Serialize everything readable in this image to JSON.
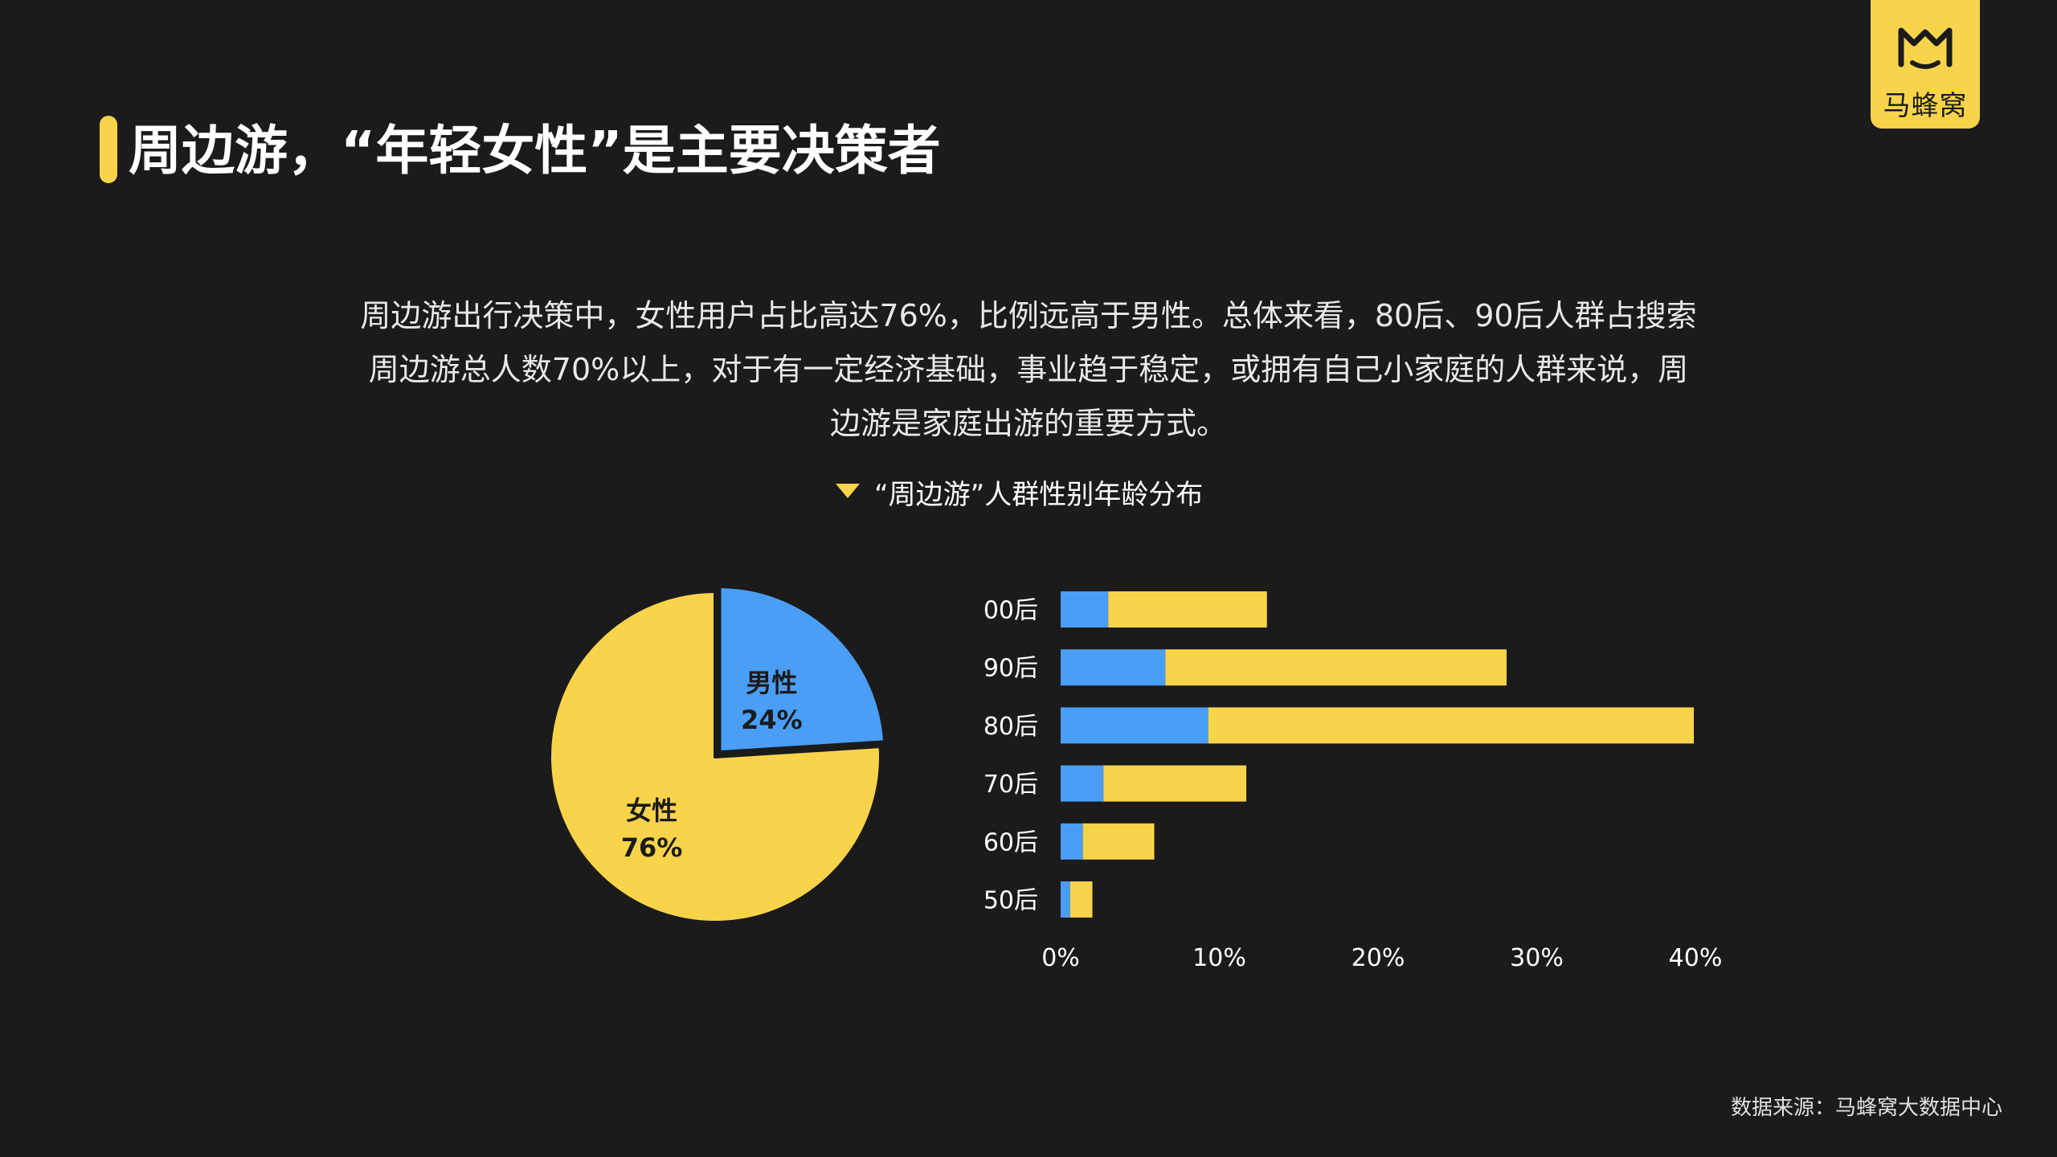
{
  "logo": {
    "text": "马蜂窝",
    "icon": "m-logo-icon"
  },
  "title": "周边游，“年轻女性”是主要决策者",
  "description": "周边游出行决策中，女性用户占比高达76%，比例远高于男性。总体来看，80后、90后人群占搜索周边游总人数70%以上，对于有一定经济基础，事业趋于稳定，或拥有自己小家庭的人群来说，周边游是家庭出游的重要方式。",
  "chart_title": "“周边游”人群性别年龄分布",
  "source": "数据来源：马蜂窝大数据中心",
  "colors": {
    "male": "#4a9ef5",
    "female": "#f9d44b",
    "background": "#1b1b1b",
    "accent": "#f9d44b"
  },
  "chart_data": [
    {
      "type": "pie",
      "slices": [
        {
          "label": "男性",
          "value": 24,
          "value_label": "24%",
          "color": "#4a9ef5",
          "exploded": true
        },
        {
          "label": "女性",
          "value": 76,
          "value_label": "76%",
          "color": "#f9d44b"
        }
      ]
    },
    {
      "type": "bar",
      "orientation": "horizontal",
      "stacked": true,
      "categories": [
        "00后",
        "90后",
        "80后",
        "70后",
        "60后",
        "50后"
      ],
      "series": [
        {
          "color": "#4a9ef5",
          "values": [
            3,
            6.6,
            9.3,
            2.7,
            1.4,
            0.6
          ]
        },
        {
          "color": "#f9d44b",
          "values": [
            10,
            21.5,
            30.6,
            9.0,
            4.5,
            1.4
          ]
        }
      ],
      "xlim": [
        0,
        40
      ],
      "xticks": [
        "0%",
        "10%",
        "20%",
        "30%",
        "40%"
      ]
    }
  ]
}
